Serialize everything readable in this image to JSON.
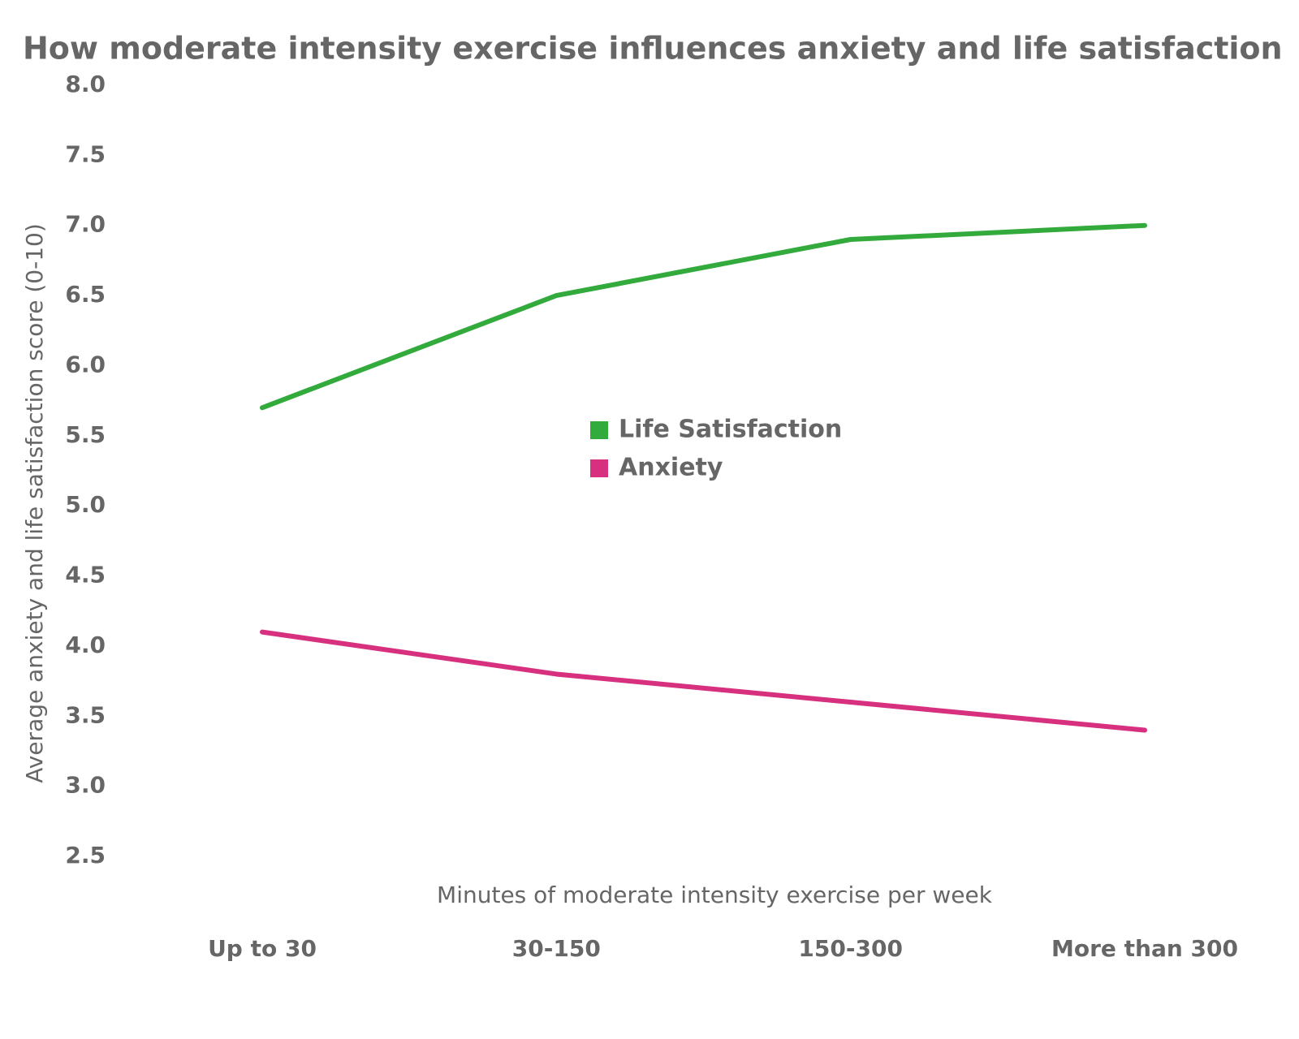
{
  "chart_data": {
    "type": "line",
    "title": "How moderate intensity exercise influences anxiety and life satisfaction",
    "x_label": "Minutes of moderate intensity exercise per week",
    "y_label": "Average anxiety and life satisfaction score (0-10)",
    "categories": [
      "Up to 30",
      "30-150",
      "150-300",
      "More than 300"
    ],
    "series": [
      {
        "name": "Life Satisfaction",
        "color": "#33aa3c",
        "values": [
          5.7,
          6.5,
          6.9,
          7.0
        ]
      },
      {
        "name": "Anxiety",
        "color": "#d6307f",
        "values": [
          4.1,
          3.8,
          3.6,
          3.4
        ]
      }
    ],
    "ylim": [
      2.5,
      8.0
    ],
    "yticks": [
      {
        "value": 2.5,
        "label": "2.5"
      },
      {
        "value": 3,
        "label": "3.0"
      },
      {
        "value": 3.5,
        "label": "3.5"
      },
      {
        "value": 4,
        "label": "4.0"
      },
      {
        "value": 4.5,
        "label": "4.5"
      },
      {
        "value": 5,
        "label": "5.0"
      },
      {
        "value": 5.5,
        "label": "5.5"
      },
      {
        "value": 6,
        "label": "6.0"
      },
      {
        "value": 6.5,
        "label": "6.5"
      },
      {
        "value": 7,
        "label": "7.0"
      },
      {
        "value": 7.5,
        "label": "7.5"
      },
      {
        "value": 8,
        "label": "8.0"
      }
    ],
    "grid": false
  }
}
